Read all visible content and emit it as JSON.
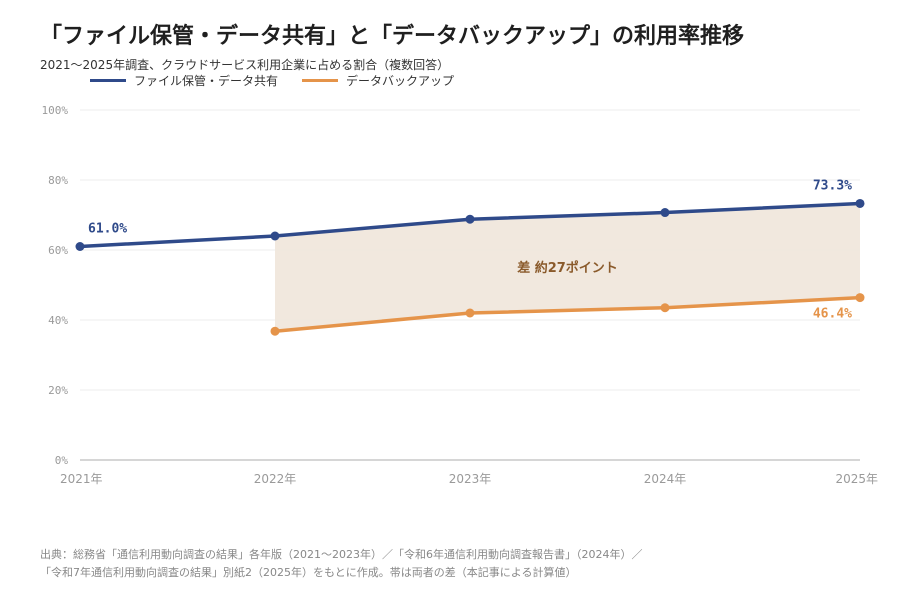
{
  "title": "「ファイル保管・データ共有」と「データバックアップ」の利用率推移",
  "subtitle": "2021〜2025年調査、クラウドサービス利用企業に占める割合（複数回答）",
  "chart_data": {
    "type": "line",
    "categories": [
      "2021年",
      "2022年",
      "2023年",
      "2024年",
      "2025年"
    ],
    "ylim": [
      0,
      100
    ],
    "yticks": [
      "0%",
      "20%",
      "40%",
      "60%",
      "80%",
      "100%"
    ],
    "grid": true,
    "legend_position": "top-left",
    "series": [
      {
        "name": "ファイル保管・データ共有",
        "color": "#2f4a8a",
        "values": [
          61.0,
          64.0,
          68.8,
          70.7,
          73.3
        ]
      },
      {
        "name": "データバックアップ",
        "color": "#e5944a",
        "values": [
          null,
          36.8,
          42.0,
          43.5,
          46.4
        ]
      }
    ],
    "data_labels": [
      {
        "series": 0,
        "index": 0,
        "text": "61.0%"
      },
      {
        "series": 0,
        "index": 4,
        "text": "73.3%"
      },
      {
        "series": 1,
        "index": 4,
        "text": "46.4%"
      }
    ],
    "band": {
      "from_index": 1,
      "to_index": 4,
      "fill": "#efe6da"
    },
    "annotation": "差 約27ポイント"
  },
  "source_lines": [
    "出典：総務省「通信利用動向調査の結果」各年版（2021〜2023年）／「令和6年通信利用動向調査報告書」（2024年）／",
    "「令和7年通信利用動向調査の結果」別紙2（2025年）をもとに作成。帯は両者の差（本記事による計算値）"
  ]
}
